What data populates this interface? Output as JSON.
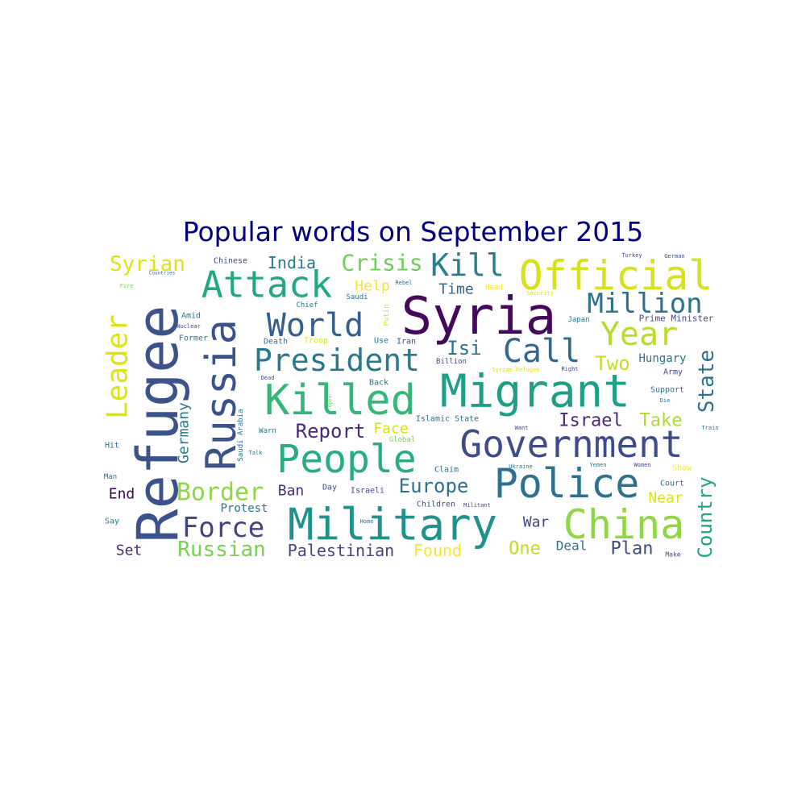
{
  "chart_data": {
    "type": "wordcloud",
    "title": "Popular words on September 2015",
    "title_color": "#000080",
    "colormap": "viridis",
    "words": [
      {
        "text": "Syria",
        "weight": 64,
        "color": "#46085c"
      },
      {
        "text": "Refugee",
        "weight": 70,
        "color": "#3b528b"
      },
      {
        "text": "Migrant",
        "weight": 56,
        "color": "#1f9f88"
      },
      {
        "text": "Government",
        "weight": 46,
        "color": "#3e4c8a"
      },
      {
        "text": "Military",
        "weight": 54,
        "color": "#21918c"
      },
      {
        "text": "Killed",
        "weight": 52,
        "color": "#35b779"
      },
      {
        "text": "Police",
        "weight": 50,
        "color": "#2c728e"
      },
      {
        "text": "China",
        "weight": 50,
        "color": "#8fd744"
      },
      {
        "text": "Russia",
        "weight": 52,
        "color": "#3b528b"
      },
      {
        "text": "Official",
        "weight": 50,
        "color": "#d8e219"
      },
      {
        "text": "People",
        "weight": 48,
        "color": "#27ad81"
      },
      {
        "text": "Attack",
        "weight": 45,
        "color": "#22a884"
      },
      {
        "text": "President",
        "weight": 38,
        "color": "#2a788e"
      },
      {
        "text": "World",
        "weight": 40,
        "color": "#355f8d"
      },
      {
        "text": "Call",
        "weight": 40,
        "color": "#31688e"
      },
      {
        "text": "Year",
        "weight": 40,
        "color": "#b5de2b"
      },
      {
        "text": "Kill",
        "weight": 38,
        "color": "#277f8e"
      },
      {
        "text": "Leader",
        "weight": 36,
        "color": "#dde318"
      },
      {
        "text": "Million",
        "weight": 34,
        "color": "#2c728e"
      },
      {
        "text": "Force",
        "weight": 34,
        "color": "#414487"
      },
      {
        "text": "Border",
        "weight": 30,
        "color": "#8fd744"
      },
      {
        "text": "Crisis",
        "weight": 28,
        "color": "#6ece58"
      },
      {
        "text": "Syrian",
        "weight": 26,
        "color": "#dde318"
      },
      {
        "text": "Russian",
        "weight": 26,
        "color": "#7ad151"
      },
      {
        "text": "State",
        "weight": 26,
        "color": "#2c728e"
      },
      {
        "text": "Country",
        "weight": 24,
        "color": "#20a386"
      },
      {
        "text": "Europe",
        "weight": 24,
        "color": "#2c728e"
      },
      {
        "text": "Isi",
        "weight": 24,
        "color": "#2a788e"
      },
      {
        "text": "Two",
        "weight": 24,
        "color": "#bddf26"
      },
      {
        "text": "Report",
        "weight": 24,
        "color": "#482878"
      },
      {
        "text": "Israel",
        "weight": 22,
        "color": "#482878"
      },
      {
        "text": "Take",
        "weight": 22,
        "color": "#addc30"
      },
      {
        "text": "Plan",
        "weight": 22,
        "color": "#3e4a89"
      },
      {
        "text": "One",
        "weight": 22,
        "color": "#bddf26"
      },
      {
        "text": "India",
        "weight": 20,
        "color": "#2a788e"
      },
      {
        "text": "Germany",
        "weight": 18,
        "color": "#2a788e"
      },
      {
        "text": "Palestinian",
        "weight": 20,
        "color": "#414487"
      },
      {
        "text": "Found",
        "weight": 20,
        "color": "#fde725"
      },
      {
        "text": "Face",
        "weight": 18,
        "color": "#d8e219"
      },
      {
        "text": "Help",
        "weight": 18,
        "color": "#fde725"
      },
      {
        "text": "Time",
        "weight": 18,
        "color": "#31688e"
      },
      {
        "text": "Ban",
        "weight": 18,
        "color": "#472d7b"
      },
      {
        "text": "Near",
        "weight": 18,
        "color": "#dde318"
      },
      {
        "text": "End",
        "weight": 18,
        "color": "#440154"
      },
      {
        "text": "Set",
        "weight": 18,
        "color": "#482878"
      },
      {
        "text": "War",
        "weight": 18,
        "color": "#3e4a89"
      },
      {
        "text": "Deal",
        "weight": 16,
        "color": "#2a788e"
      },
      {
        "text": "Hungary",
        "weight": 14,
        "color": "#2c728e"
      },
      {
        "text": "Protest",
        "weight": 14,
        "color": "#2c728e"
      },
      {
        "text": "Prime Minister",
        "weight": 11,
        "color": "#3e4a89"
      },
      {
        "text": "Islamic State",
        "weight": 10,
        "color": "#2c728e"
      },
      {
        "text": "Chinese",
        "weight": 10,
        "color": "#3e4a89"
      },
      {
        "text": "Saudi Arabia",
        "weight": 9,
        "color": "#2c728e"
      },
      {
        "text": "Syrian Refugee",
        "weight": 7,
        "color": "#d8e219"
      },
      {
        "text": "Children",
        "weight": 10,
        "color": "#3b528b"
      },
      {
        "text": "Militant",
        "weight": 7,
        "color": "#3e4a89"
      },
      {
        "text": "Global",
        "weight": 9,
        "color": "#7ad151"
      },
      {
        "text": "Billion",
        "weight": 9,
        "color": "#3e4a89"
      },
      {
        "text": "Support",
        "weight": 10,
        "color": "#2c728e"
      },
      {
        "text": "Army",
        "weight": 10,
        "color": "#414487"
      },
      {
        "text": "Court",
        "weight": 10,
        "color": "#2c728e"
      },
      {
        "text": "Show",
        "weight": 10,
        "color": "#fde725"
      },
      {
        "text": "Make",
        "weight": 8,
        "color": "#3e4a89"
      },
      {
        "text": "Japan",
        "weight": 9,
        "color": "#2a788e"
      },
      {
        "text": "Right",
        "weight": 7,
        "color": "#3e4a89"
      },
      {
        "text": "Die",
        "weight": 7,
        "color": "#2c728e"
      },
      {
        "text": "Train",
        "weight": 7,
        "color": "#2c728e"
      },
      {
        "text": "Women",
        "weight": 7,
        "color": "#3e4a89"
      },
      {
        "text": "Yemen",
        "weight": 7,
        "color": "#2c728e"
      },
      {
        "text": "Ukraine",
        "weight": 7,
        "color": "#2c728e"
      },
      {
        "text": "Want",
        "weight": 7,
        "color": "#3e4a89"
      },
      {
        "text": "Security",
        "weight": 7,
        "color": "#d8e219"
      },
      {
        "text": "Head",
        "weight": 9,
        "color": "#fde725"
      },
      {
        "text": "Rebel",
        "weight": 7,
        "color": "#2c728e"
      },
      {
        "text": "Putin",
        "weight": 9,
        "color": "#dde318"
      },
      {
        "text": "Iran",
        "weight": 10,
        "color": "#3b528b"
      },
      {
        "text": "Use",
        "weight": 10,
        "color": "#2c728e"
      },
      {
        "text": "Back",
        "weight": 10,
        "color": "#2c728e"
      },
      {
        "text": "Claim",
        "weight": 10,
        "color": "#2c728e"
      },
      {
        "text": "Israeli",
        "weight": 10,
        "color": "#3e4a89"
      },
      {
        "text": "Day",
        "weight": 10,
        "color": "#3e4a89"
      },
      {
        "text": "Home",
        "weight": 7,
        "color": "#2c728e"
      },
      {
        "text": "Open",
        "weight": 6,
        "color": "#7ad151"
      },
      {
        "text": "Dead",
        "weight": 7,
        "color": "#3e4a89"
      },
      {
        "text": "Talk",
        "weight": 7,
        "color": "#2c728e"
      },
      {
        "text": "Warn",
        "weight": 9,
        "color": "#2c728e"
      },
      {
        "text": "Death",
        "weight": 10,
        "color": "#2c728e"
      },
      {
        "text": "Troop",
        "weight": 10,
        "color": "#d8e219"
      },
      {
        "text": "Saudi",
        "weight": 9,
        "color": "#2c728e"
      },
      {
        "text": "Chief",
        "weight": 9,
        "color": "#2c728e"
      },
      {
        "text": "Amid",
        "weight": 10,
        "color": "#2c728e"
      },
      {
        "text": "Nuclear",
        "weight": 7,
        "color": "#3e4a89"
      },
      {
        "text": "Former",
        "weight": 10,
        "color": "#2c728e"
      },
      {
        "text": "Countries",
        "weight": 6,
        "color": "#2c728e"
      },
      {
        "text": "Fire",
        "weight": 7,
        "color": "#7ad151"
      },
      {
        "text": "Turkey",
        "weight": 7,
        "color": "#3e4a89"
      },
      {
        "text": "German",
        "weight": 7,
        "color": "#3e4a89"
      },
      {
        "text": "Hit",
        "weight": 10,
        "color": "#2c728e"
      },
      {
        "text": "Man",
        "weight": 9,
        "color": "#2c728e"
      },
      {
        "text": "Say",
        "weight": 10,
        "color": "#2c728e"
      }
    ]
  }
}
